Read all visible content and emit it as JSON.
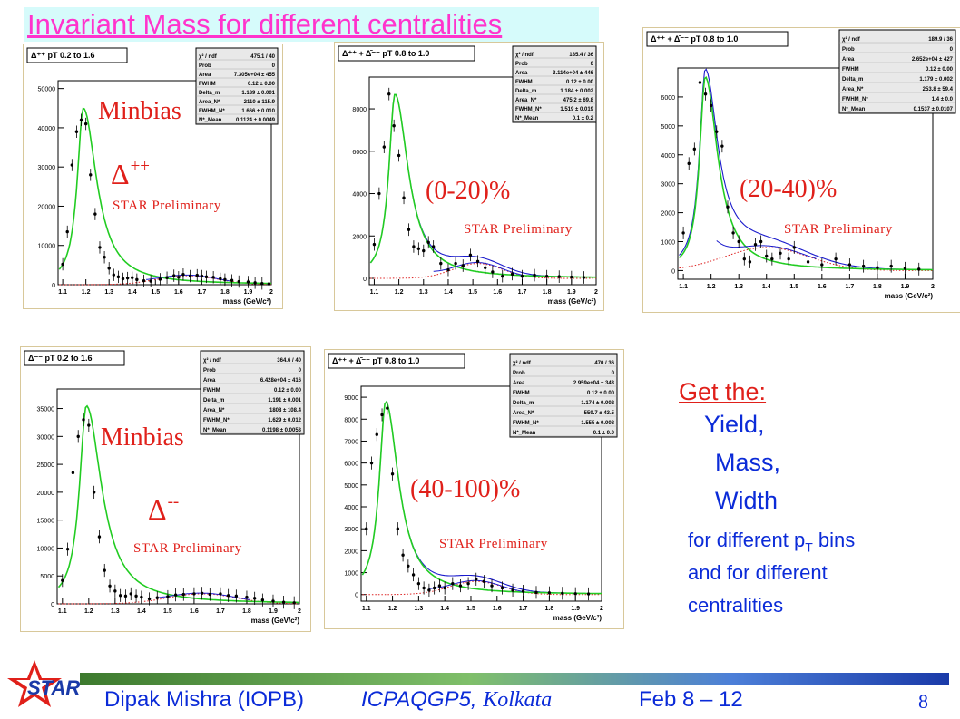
{
  "slide": {
    "title": "Invariant Mass for different centralities",
    "page_number": "8"
  },
  "footer": {
    "author": "Dipak Mishra (IOPB)",
    "conference": "ICPAQGP5,",
    "city": "Kolkata",
    "dates": "Feb 8 – 12",
    "logo_text": "STAR"
  },
  "side_text": {
    "get_the": "Get the:",
    "yield": "Yield,",
    "mass": "Mass,",
    "width": "Width",
    "line1_pre": "for different p",
    "line1_sub": "T",
    "line1_post": " bins",
    "line2": "and for different",
    "line3": "centralities"
  },
  "colors": {
    "title_text": "#ff33cc",
    "title_bg": "#d6fbfb",
    "overlay_red": "#e0201a",
    "side_blue": "#0b2bd8",
    "fit_green": "#22cc22",
    "fit_blue": "#1a1acc",
    "background_red": "#dd2222",
    "stat_box_bg": "#e9e9e9"
  },
  "chart_data": [
    {
      "type": "scatter",
      "panel_title": "Δ⁺⁺ pT 0.2 to 1.6",
      "xlabel": "mass (GeV/c²)",
      "xlim": [
        1.08,
        2.0
      ],
      "ylim": [
        0,
        52000
      ],
      "yticks": [
        0,
        10000,
        20000,
        30000,
        40000,
        50000
      ],
      "xticks": [
        1.1,
        1.2,
        1.3,
        1.4,
        1.5,
        1.6,
        1.7,
        1.8,
        1.9,
        2.0
      ],
      "xtick_labels": [
        "1.1",
        "1.2",
        "1.3",
        "1.4",
        "1.5",
        "1.6",
        "1.7",
        "1.8",
        "1.9",
        "2"
      ],
      "peak": {
        "mu": 1.189,
        "amp": 45000,
        "w_left": 0.032,
        "w_right": 0.07
      },
      "bump": {
        "mu": 1.64,
        "amp": 2300,
        "sigma": 0.13
      },
      "points": [
        [
          1.1,
          5200
        ],
        [
          1.12,
          13500
        ],
        [
          1.14,
          30500
        ],
        [
          1.16,
          39000
        ],
        [
          1.18,
          42000
        ],
        [
          1.2,
          41000
        ],
        [
          1.22,
          28000
        ],
        [
          1.24,
          18000
        ],
        [
          1.26,
          9500
        ],
        [
          1.28,
          7000
        ],
        [
          1.3,
          4200
        ],
        [
          1.32,
          2500
        ],
        [
          1.34,
          2000
        ],
        [
          1.36,
          1500
        ],
        [
          1.38,
          1700
        ],
        [
          1.4,
          1800
        ],
        [
          1.42,
          1300
        ],
        [
          1.45,
          1000
        ],
        [
          1.48,
          900
        ],
        [
          1.52,
          1400
        ],
        [
          1.55,
          1800
        ],
        [
          1.58,
          2300
        ],
        [
          1.6,
          1900
        ],
        [
          1.62,
          2600
        ],
        [
          1.65,
          2200
        ],
        [
          1.68,
          2400
        ],
        [
          1.7,
          2200
        ],
        [
          1.72,
          2000
        ],
        [
          1.75,
          1900
        ],
        [
          1.78,
          1500
        ],
        [
          1.8,
          1300
        ],
        [
          1.83,
          1100
        ],
        [
          1.86,
          800
        ],
        [
          1.9,
          700
        ],
        [
          1.93,
          500
        ],
        [
          1.96,
          300
        ],
        [
          1.99,
          200
        ]
      ],
      "stats": [
        [
          "χ² / ndf",
          "475.1 / 40"
        ],
        [
          "Prob",
          "0"
        ],
        [
          "Area",
          "7.305e+04 ± 455"
        ],
        [
          "FWHM",
          "0.12 ± 0.00"
        ],
        [
          "Delta_m",
          "1.189 ± 0.001"
        ],
        [
          "Area_N*",
          "2110 ± 115.9"
        ],
        [
          "FWHM_N*",
          "1.666 ± 0.010"
        ],
        [
          "N*_Mean",
          "0.1124 ± 0.0049"
        ]
      ],
      "overlays": {
        "centrality": "Minbias",
        "particle": "Δ",
        "charge": "++",
        "watermark": "STAR Preliminary"
      }
    },
    {
      "type": "scatter",
      "panel_title": "Δ⁺⁺ + Δ̄⁻⁻ pT 0.8 to 1.0",
      "xlabel": "mass (GeV/c²)",
      "xlim": [
        1.08,
        2.0
      ],
      "ylim": [
        -300,
        9500
      ],
      "yticks": [
        0,
        2000,
        4000,
        6000,
        8000
      ],
      "xticks": [
        1.1,
        1.2,
        1.3,
        1.4,
        1.5,
        1.6,
        1.7,
        1.8,
        1.9,
        2.0
      ],
      "xtick_labels": [
        "1.1",
        "1.2",
        "1.3",
        "1.4",
        "1.5",
        "1.6",
        "1.7",
        "1.8",
        "1.9",
        "2"
      ],
      "peak": {
        "mu": 1.184,
        "amp": 8700,
        "w_left": 0.03,
        "w_right": 0.065
      },
      "bump": {
        "mu": 1.52,
        "amp": 700,
        "sigma": 0.1
      },
      "points": [
        [
          1.1,
          1600
        ],
        [
          1.12,
          4000
        ],
        [
          1.14,
          6200
        ],
        [
          1.16,
          8700
        ],
        [
          1.18,
          7200
        ],
        [
          1.2,
          5800
        ],
        [
          1.22,
          3800
        ],
        [
          1.24,
          2300
        ],
        [
          1.26,
          1500
        ],
        [
          1.28,
          1400
        ],
        [
          1.3,
          1300
        ],
        [
          1.32,
          1700
        ],
        [
          1.34,
          1500
        ],
        [
          1.37,
          700
        ],
        [
          1.4,
          400
        ],
        [
          1.43,
          700
        ],
        [
          1.46,
          600
        ],
        [
          1.49,
          1100
        ],
        [
          1.52,
          800
        ],
        [
          1.55,
          500
        ],
        [
          1.58,
          300
        ],
        [
          1.62,
          100
        ],
        [
          1.66,
          200
        ],
        [
          1.7,
          100
        ],
        [
          1.75,
          150
        ],
        [
          1.8,
          100
        ],
        [
          1.85,
          80
        ],
        [
          1.9,
          60
        ],
        [
          1.95,
          40
        ]
      ],
      "stats": [
        [
          "χ² / ndf",
          "185.4 / 36"
        ],
        [
          "Prob",
          "0"
        ],
        [
          "Area",
          "3.114e+04 ± 446"
        ],
        [
          "FWHM",
          "0.12 ± 0.00"
        ],
        [
          "Delta_m",
          "1.184 ± 0.002"
        ],
        [
          "Area_N*",
          "475.2 ± 69.8"
        ],
        [
          "FWHM_N*",
          "1.519 ± 0.019"
        ],
        [
          "N*_Mean",
          "0.1 ± 0.2"
        ]
      ],
      "overlays": {
        "centrality": "(0-20)%",
        "watermark": "STAR Preliminary"
      }
    },
    {
      "type": "scatter",
      "panel_title": "Δ⁺⁺ + Δ̄⁻⁻ pT 0.8 to 1.0",
      "xlabel": "mass (GeV/c²)",
      "xlim": [
        1.08,
        2.0
      ],
      "ylim": [
        -300,
        7000
      ],
      "yticks": [
        0,
        1000,
        2000,
        3000,
        4000,
        5000,
        6000
      ],
      "xticks": [
        1.1,
        1.2,
        1.3,
        1.4,
        1.5,
        1.6,
        1.7,
        1.8,
        1.9,
        2.0
      ],
      "xtick_labels": [
        "1.1",
        "1.2",
        "1.3",
        "1.4",
        "1.5",
        "1.6",
        "1.7",
        "1.8",
        "1.9",
        "2"
      ],
      "peak": {
        "mu": 1.179,
        "amp": 6700,
        "w_left": 0.025,
        "w_right": 0.055
      },
      "bump": {
        "mu": 1.4,
        "amp": 800,
        "sigma": 0.15
      },
      "points": [
        [
          1.1,
          1300
        ],
        [
          1.12,
          3700
        ],
        [
          1.14,
          4200
        ],
        [
          1.16,
          6500
        ],
        [
          1.18,
          6100
        ],
        [
          1.2,
          5700
        ],
        [
          1.22,
          4800
        ],
        [
          1.24,
          4300
        ],
        [
          1.26,
          2200
        ],
        [
          1.28,
          1300
        ],
        [
          1.3,
          1000
        ],
        [
          1.32,
          400
        ],
        [
          1.34,
          300
        ],
        [
          1.36,
          900
        ],
        [
          1.38,
          1000
        ],
        [
          1.4,
          500
        ],
        [
          1.42,
          400
        ],
        [
          1.45,
          600
        ],
        [
          1.48,
          400
        ],
        [
          1.5,
          800
        ],
        [
          1.55,
          300
        ],
        [
          1.6,
          200
        ],
        [
          1.65,
          400
        ],
        [
          1.7,
          200
        ],
        [
          1.75,
          150
        ],
        [
          1.8,
          100
        ],
        [
          1.85,
          150
        ],
        [
          1.9,
          80
        ],
        [
          1.95,
          50
        ]
      ],
      "stats": [
        [
          "χ² / ndf",
          "189.9 / 36"
        ],
        [
          "Prob",
          "0"
        ],
        [
          "Area",
          "2.652e+04 ± 427"
        ],
        [
          "FWHM",
          "0.12 ± 0.00"
        ],
        [
          "Delta_m",
          "1.179 ± 0.002"
        ],
        [
          "Area_N*",
          "253.8 ± 59.4"
        ],
        [
          "FWHM_N*",
          "1.4 ± 0.0"
        ],
        [
          "N*_Mean",
          "0.1537 ± 0.0107"
        ]
      ],
      "overlays": {
        "centrality": "(20-40)%",
        "watermark": "STAR Preliminary"
      }
    },
    {
      "type": "scatter",
      "panel_title": "Δ̄⁻⁻ pT 0.2 to 1.6",
      "xlabel": "mass (GeV/c²)",
      "xlim": [
        1.08,
        2.0
      ],
      "ylim": [
        0,
        38500
      ],
      "yticks": [
        0,
        5000,
        10000,
        15000,
        20000,
        25000,
        30000,
        35000
      ],
      "xticks": [
        1.1,
        1.2,
        1.3,
        1.4,
        1.5,
        1.6,
        1.7,
        1.8,
        1.9,
        2.0
      ],
      "xtick_labels": [
        "1.1",
        "1.2",
        "1.3",
        "1.4",
        "1.5",
        "1.6",
        "1.7",
        "1.8",
        "1.9",
        "2"
      ],
      "peak": {
        "mu": 1.191,
        "amp": 35500,
        "w_left": 0.032,
        "w_right": 0.07
      },
      "bump": {
        "mu": 1.63,
        "amp": 1800,
        "sigma": 0.13
      },
      "points": [
        [
          1.1,
          4200
        ],
        [
          1.12,
          9800
        ],
        [
          1.14,
          23500
        ],
        [
          1.16,
          30000
        ],
        [
          1.18,
          33000
        ],
        [
          1.2,
          32000
        ],
        [
          1.22,
          20000
        ],
        [
          1.24,
          12000
        ],
        [
          1.26,
          6000
        ],
        [
          1.28,
          3200
        ],
        [
          1.3,
          2300
        ],
        [
          1.32,
          1500
        ],
        [
          1.34,
          1400
        ],
        [
          1.36,
          1800
        ],
        [
          1.38,
          1400
        ],
        [
          1.4,
          1200
        ],
        [
          1.43,
          900
        ],
        [
          1.46,
          1100
        ],
        [
          1.5,
          1300
        ],
        [
          1.53,
          1600
        ],
        [
          1.56,
          1700
        ],
        [
          1.6,
          1800
        ],
        [
          1.63,
          1900
        ],
        [
          1.66,
          1700
        ],
        [
          1.7,
          1800
        ],
        [
          1.73,
          1500
        ],
        [
          1.76,
          1400
        ],
        [
          1.8,
          1200
        ],
        [
          1.83,
          1000
        ],
        [
          1.86,
          700
        ],
        [
          1.9,
          500
        ],
        [
          1.94,
          300
        ],
        [
          1.98,
          200
        ]
      ],
      "stats": [
        [
          "χ² / ndf",
          "364.6 / 40"
        ],
        [
          "Prob",
          "0"
        ],
        [
          "Area",
          "6.428e+04 ± 416"
        ],
        [
          "FWHM",
          "0.12 ± 0.00"
        ],
        [
          "Delta_m",
          "1.191 ± 0.001"
        ],
        [
          "Area_N*",
          "1808 ± 108.4"
        ],
        [
          "FWHM_N*",
          "1.629 ± 0.012"
        ],
        [
          "N*_Mean",
          "0.1198 ± 0.0053"
        ]
      ],
      "overlays": {
        "centrality": "Minbias",
        "particle": "Δ",
        "charge": "--",
        "watermark": "STAR Preliminary"
      }
    },
    {
      "type": "scatter",
      "panel_title": "Δ⁺⁺ + Δ̄⁻⁻ pT 0.8 to 1.0",
      "xlabel": "mass (GeV/c²)",
      "xlim": [
        1.08,
        2.0
      ],
      "ylim": [
        -300,
        9500
      ],
      "yticks": [
        0,
        1000,
        2000,
        3000,
        4000,
        5000,
        6000,
        7000,
        8000,
        9000
      ],
      "xticks": [
        1.1,
        1.2,
        1.3,
        1.4,
        1.5,
        1.6,
        1.7,
        1.8,
        1.9,
        2.0
      ],
      "xtick_labels": [
        "1.1",
        "1.2",
        "1.3",
        "1.4",
        "1.5",
        "1.6",
        "1.7",
        "1.8",
        "1.9",
        "2"
      ],
      "peak": {
        "mu": 1.174,
        "amp": 8800,
        "w_left": 0.03,
        "w_right": 0.06
      },
      "bump": {
        "mu": 1.52,
        "amp": 600,
        "sigma": 0.1
      },
      "points": [
        [
          1.1,
          3000
        ],
        [
          1.12,
          6000
        ],
        [
          1.14,
          7300
        ],
        [
          1.16,
          8200
        ],
        [
          1.18,
          8500
        ],
        [
          1.2,
          5500
        ],
        [
          1.22,
          3000
        ],
        [
          1.24,
          1800
        ],
        [
          1.26,
          1300
        ],
        [
          1.28,
          900
        ],
        [
          1.3,
          500
        ],
        [
          1.32,
          300
        ],
        [
          1.34,
          200
        ],
        [
          1.36,
          300
        ],
        [
          1.38,
          400
        ],
        [
          1.4,
          300
        ],
        [
          1.43,
          500
        ],
        [
          1.46,
          400
        ],
        [
          1.49,
          500
        ],
        [
          1.52,
          700
        ],
        [
          1.55,
          600
        ],
        [
          1.58,
          400
        ],
        [
          1.62,
          300
        ],
        [
          1.66,
          200
        ],
        [
          1.7,
          150
        ],
        [
          1.75,
          100
        ],
        [
          1.8,
          80
        ],
        [
          1.85,
          60
        ],
        [
          1.9,
          40
        ],
        [
          1.95,
          30
        ]
      ],
      "stats": [
        [
          "χ² / ndf",
          "470 / 36"
        ],
        [
          "Prob",
          "0"
        ],
        [
          "Area",
          "2.959e+04 ± 343"
        ],
        [
          "FWHM",
          "0.12 ± 0.00"
        ],
        [
          "Delta_m",
          "1.174 ± 0.002"
        ],
        [
          "Area_N*",
          "559.7 ± 43.5"
        ],
        [
          "FWHM_N*",
          "1.555 ± 0.008"
        ],
        [
          "N*_Mean",
          "0.1 ± 0.0"
        ]
      ],
      "overlays": {
        "centrality": "(40-100)%",
        "watermark": "STAR Preliminary"
      }
    }
  ]
}
